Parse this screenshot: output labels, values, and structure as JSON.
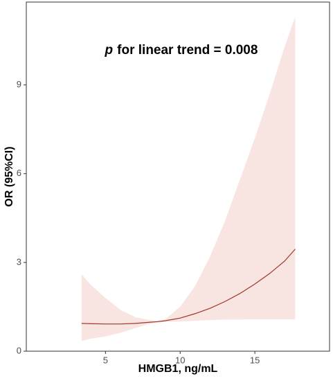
{
  "chart_data": {
    "type": "line-band",
    "annotation": {
      "italic": "p",
      "text": "for linear trend = 0.008"
    },
    "x_label": "HMGB1, ng/mL",
    "y_label": "OR  (95%CI)",
    "x": [
      3.4,
      4,
      5,
      6,
      7,
      8,
      8.5,
      9,
      10,
      11,
      12,
      13,
      14,
      15,
      16,
      17,
      17.7
    ],
    "fit": [
      0.94,
      0.93,
      0.92,
      0.92,
      0.94,
      0.98,
      1.0,
      1.03,
      1.12,
      1.27,
      1.45,
      1.68,
      1.95,
      2.27,
      2.63,
      3.05,
      3.45
    ],
    "upper": [
      2.6,
      2.25,
      1.8,
      1.4,
      1.15,
      1.05,
      1.03,
      1.08,
      1.5,
      2.2,
      3.2,
      4.4,
      5.8,
      7.2,
      8.7,
      10.3,
      11.3
    ],
    "lower": [
      0.35,
      0.42,
      0.5,
      0.62,
      0.78,
      0.93,
      0.97,
      0.99,
      1.0,
      1.03,
      1.05,
      1.07,
      1.07,
      1.08,
      1.08,
      1.08,
      1.08
    ],
    "line_color": "#a0352a",
    "band_color": "#f8e4e0",
    "xlim": [
      -0.3,
      20
    ],
    "ylim": [
      0,
      11.8
    ],
    "xticks": [
      5,
      10,
      15
    ],
    "yticks": [
      0,
      3,
      6,
      9
    ],
    "grid": false
  }
}
